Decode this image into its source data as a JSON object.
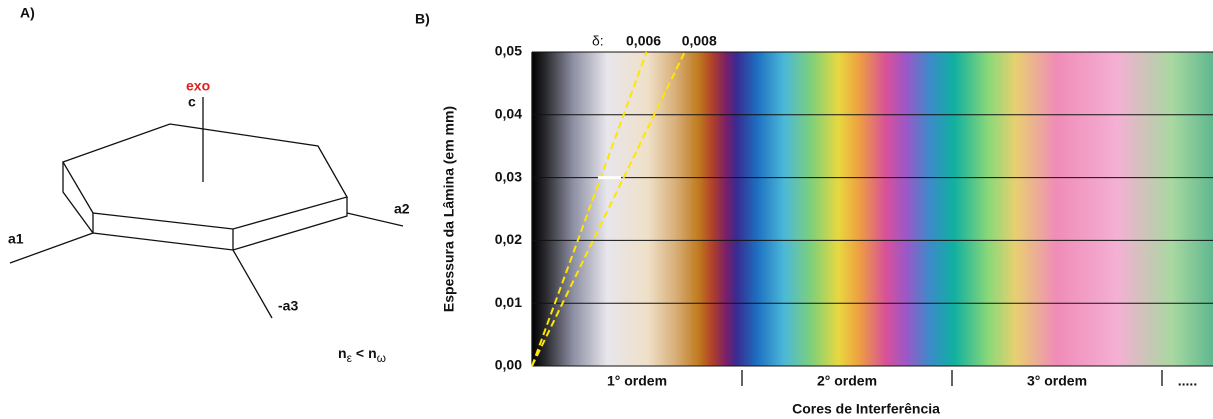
{
  "panel_a": {
    "label": "A)",
    "exo": "exo",
    "axis_c": "c",
    "axis_a1": "a1",
    "axis_a2": "a2",
    "axis_a3": "-a3",
    "n_epsilon": {
      "base": "n",
      "sub": "ε"
    },
    "relation": "<",
    "n_omega": {
      "base": "n",
      "sub": "ω"
    }
  },
  "chart_data": {
    "type": "interference",
    "label": "B)",
    "y_label": "Espessura da Lâmina (em mm)",
    "x_label": "Cores de Interferência",
    "ylim": [
      0,
      0.05
    ],
    "yticks": [
      {
        "value": 0,
        "label": "0,00"
      },
      {
        "value": 0.01,
        "label": "0,01"
      },
      {
        "value": 0.02,
        "label": "0,02"
      },
      {
        "value": 0.03,
        "label": "0,03"
      },
      {
        "value": 0.04,
        "label": "0,04"
      },
      {
        "value": 0.05,
        "label": "0,05"
      }
    ],
    "grid": true,
    "categories": [
      "1° ordem",
      "2° ordem",
      "3° ordem",
      "....."
    ],
    "delta_label": "δ:",
    "birefringence_lines": [
      {
        "value": 0.006,
        "label": "0,006"
      },
      {
        "value": 0.008,
        "label": "0,008"
      }
    ],
    "line_color": "#ffe600"
  }
}
